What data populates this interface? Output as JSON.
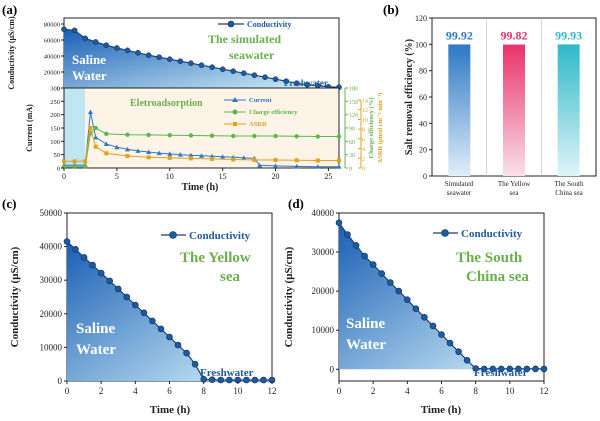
{
  "chart_data": [
    {
      "panel": "(a)",
      "type": "area",
      "ylabel": "Conductivity (μS/cm)",
      "yticks": [
        0,
        20000,
        40000,
        60000,
        80000
      ],
      "ylim": [
        0,
        80000
      ],
      "x": [
        0,
        1,
        2,
        3,
        4,
        5,
        6,
        7,
        8,
        9,
        10,
        11,
        12,
        13,
        14,
        15,
        16,
        17,
        18,
        19,
        20,
        21,
        22,
        23,
        24,
        25,
        26
      ],
      "series": [
        {
          "name": "Conductivity",
          "values": [
            73500,
            72000,
            62000,
            57500,
            53500,
            50000,
            47000,
            44000,
            41000,
            38500,
            36000,
            33500,
            31000,
            28500,
            26000,
            23500,
            21000,
            18500,
            16000,
            13500,
            11000,
            8500,
            6000,
            4000,
            3000,
            1500,
            1000
          ]
        }
      ],
      "annotations": [
        "Saline Water",
        "Freshwater",
        "The simulated seawater"
      ]
    },
    {
      "panel": "(a) lower",
      "type": "line",
      "xlabel": "Time (h)",
      "xticks": [
        0,
        5,
        10,
        15,
        20,
        25
      ],
      "xlim": [
        0,
        26
      ],
      "ylabel_left": "Current (mA)",
      "yticks_left": [
        0,
        50,
        100,
        150,
        200,
        250,
        300
      ],
      "ylim_left": [
        0,
        300
      ],
      "ylabel_right1": "Charge efficiency (%)",
      "yticks_right1": [
        0,
        30,
        60,
        90,
        120,
        150,
        180
      ],
      "ylabel_right2": "ASRR (μmol cm⁻² min⁻¹)",
      "yticks_right2": [
        0,
        2,
        4,
        6,
        8,
        10,
        12,
        14
      ],
      "annotation": "Eletroadsorption",
      "series": [
        {
          "name": "Current",
          "color": "#2e78c4",
          "x": [
            0,
            1,
            2,
            2.5,
            3,
            4,
            5,
            6,
            7,
            8,
            9,
            10,
            11,
            12,
            13,
            14,
            15,
            16,
            17,
            18,
            18.5,
            20,
            22,
            24,
            26
          ],
          "values": [
            10,
            10,
            10,
            210,
            115,
            90,
            78,
            70,
            64,
            60,
            56,
            53,
            50,
            48,
            46,
            44,
            42,
            40,
            38,
            36,
            10,
            8,
            6,
            5,
            5
          ]
        },
        {
          "name": "Charge efficiency",
          "color": "#5ab84e",
          "x": [
            0,
            1,
            2,
            2.5,
            3,
            4,
            6,
            8,
            10,
            12,
            14,
            16,
            18,
            20,
            22,
            24,
            26
          ],
          "values": [
            5,
            5,
            5,
            130,
            150,
            128,
            125,
            124,
            123,
            122,
            121,
            120,
            120,
            120,
            119,
            118,
            118
          ]
        },
        {
          "name": "ASRR",
          "color": "#e0a020",
          "x": [
            0,
            1,
            2,
            2.5,
            3,
            4,
            6,
            8,
            10,
            12,
            14,
            16,
            18,
            20,
            22,
            24,
            26
          ],
          "values": [
            25,
            25,
            25,
            150,
            80,
            55,
            45,
            40,
            38,
            36,
            34,
            32,
            30,
            30,
            29,
            28,
            28
          ]
        }
      ]
    },
    {
      "panel": "(b)",
      "type": "bar",
      "ylabel": "Salt removal efficiency (%)",
      "yticks": [
        0,
        20,
        40,
        60,
        80,
        100,
        120
      ],
      "ylim": [
        0,
        120
      ],
      "categories": [
        "Simulated seawater",
        "The Yellow sea",
        "The South China sea"
      ],
      "values": [
        99.92,
        99.82,
        99.93
      ],
      "value_labels": [
        "99.92",
        "99.82",
        "99.93"
      ],
      "colors": [
        "#2e78c4",
        "#e8336a",
        "#2fb8c8"
      ]
    },
    {
      "panel": "(c)",
      "type": "area",
      "xlabel": "Time (h)",
      "ylabel": "Conductivity (μS/cm)",
      "xticks": [
        0,
        2,
        4,
        6,
        8,
        10,
        12
      ],
      "yticks": [
        0,
        10000,
        20000,
        30000,
        40000,
        50000
      ],
      "xlim": [
        0,
        12
      ],
      "ylim": [
        0,
        50000
      ],
      "x": [
        0,
        0.5,
        1,
        1.5,
        2,
        2.5,
        3,
        3.5,
        4,
        4.5,
        5,
        5.5,
        6,
        6.5,
        7,
        7.5,
        8,
        8.5,
        9,
        9.5,
        10,
        10.5,
        11,
        11.5,
        12
      ],
      "series": [
        {
          "name": "Conductivity",
          "values": [
            41500,
            39200,
            36800,
            34500,
            32100,
            29800,
            27400,
            25000,
            22600,
            20300,
            17900,
            15500,
            13100,
            10700,
            8300,
            5000,
            500,
            400,
            300,
            300,
            300,
            300,
            300,
            300,
            300
          ]
        }
      ],
      "annotations": [
        "The Yellow sea",
        "Saline Water",
        "Freshwater"
      ]
    },
    {
      "panel": "(d)",
      "type": "area",
      "xlabel": "Time (h)",
      "ylabel": "Conductivity (μS/cm)",
      "xticks": [
        0,
        2,
        4,
        6,
        8,
        10,
        12
      ],
      "yticks": [
        0,
        10000,
        20000,
        30000,
        40000
      ],
      "xlim": [
        0,
        12
      ],
      "ylim": [
        -3000,
        40000
      ],
      "x": [
        0,
        0.5,
        1,
        1.5,
        2,
        2.5,
        3,
        3.5,
        4,
        4.5,
        5,
        5.5,
        6,
        6.5,
        7,
        7.5,
        8,
        8.5,
        9,
        9.5,
        10,
        10.5,
        11,
        11.5,
        12
      ],
      "series": [
        {
          "name": "Conductivity",
          "values": [
            37500,
            34500,
            31700,
            29000,
            26800,
            24500,
            22200,
            20000,
            17800,
            15500,
            13300,
            11100,
            8900,
            6700,
            4500,
            2300,
            200,
            100,
            100,
            100,
            100,
            100,
            100,
            100,
            100
          ]
        }
      ],
      "annotations": [
        "The South China sea",
        "Saline Water",
        "Freshwater"
      ]
    }
  ],
  "labels": {
    "a": "(a)",
    "b": "(b)",
    "c": "(c)",
    "d": "(d)",
    "conductivity": "Conductivity",
    "saline1": "Saline",
    "saline2": "Water",
    "freshwater": "Freshwater",
    "sim1": "The simulated",
    "sim2": "seawater",
    "eletro": "Eletroadsorption",
    "current": "Current",
    "charge_eff": "Charge efficiency",
    "asrr": "ASRR",
    "time": "Time (h)",
    "cond_unit_a": "Conductivity (μS/cm)",
    "current_unit": "Current (mA)",
    "charge_unit": "Charge efficiency (%)",
    "asrr_unit": "ASRR (μmol cm⁻² min⁻¹)",
    "salt_unit": "Salt removal efficiency (%)",
    "cat1a": "Simulated",
    "cat1b": "seawater",
    "cat2a": "The Yellow",
    "cat2b": "sea",
    "cat3a": "The South",
    "cat3b": "China sea",
    "yellow1": "The Yellow",
    "yellow2": "sea",
    "south1": "The South",
    "south2": "China sea"
  },
  "colors": {
    "marker": "#1e5aa0",
    "area_top": "#1a5fb4",
    "area_bottom": "#c8ecf7",
    "green_text": "#6ab04c",
    "axis": "#222222"
  }
}
